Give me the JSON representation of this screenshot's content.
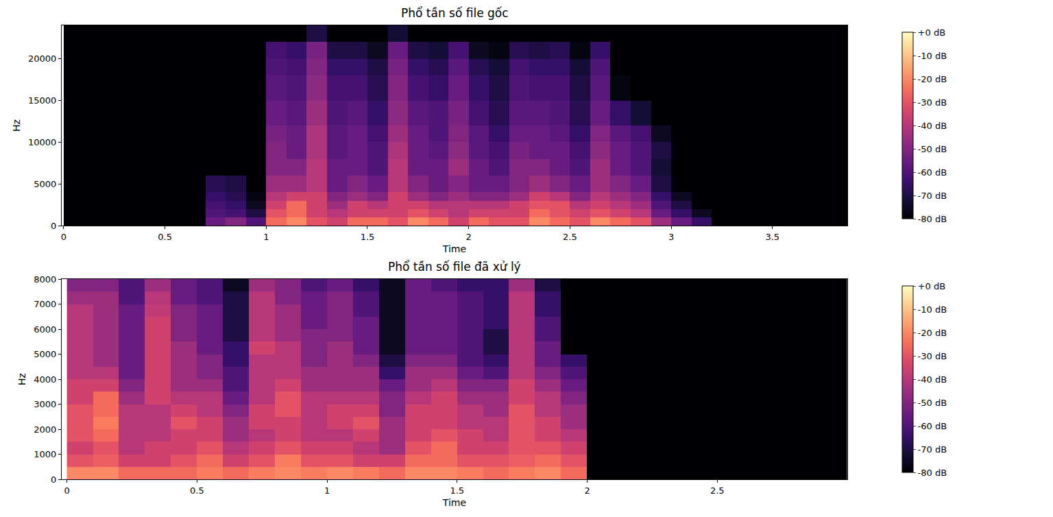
{
  "chart_data": [
    {
      "type": "heatmap",
      "title": "Phổ tần số file gốc",
      "x_label": "Time",
      "y_label": "Hz",
      "color": "magma",
      "x": [
        0,
        0.1,
        0.2,
        0.3,
        0.4,
        0.5,
        0.6,
        0.7,
        0.8,
        0.9,
        1,
        1.1,
        1.2,
        1.3,
        1.4,
        1.5,
        1.6,
        1.7,
        1.8,
        1.9,
        2,
        2.1,
        2.2,
        2.3,
        2.4,
        2.5,
        2.6,
        2.7,
        2.8,
        2.9,
        3,
        3.1,
        3.2,
        3.3,
        3.4,
        3.5,
        3.6,
        3.7,
        3.8,
        3.9
      ],
      "y": [
        0,
        1000,
        2000,
        3000,
        4000,
        6000,
        8000,
        10000,
        12000,
        15000,
        18000,
        20000,
        22000,
        24000
      ],
      "z": [
        [
          -80,
          -80,
          -80,
          -80,
          -80,
          -80,
          -80,
          -55,
          -50,
          -60,
          -25,
          -20,
          -30,
          -35,
          -25,
          -25,
          -30,
          -20,
          -25,
          -35,
          -25,
          -30,
          -30,
          -20,
          -25,
          -30,
          -20,
          -25,
          -30,
          -45,
          -55,
          -65,
          -80,
          -80,
          -80,
          -80,
          -80,
          -80,
          -80
        ],
        [
          -80,
          -80,
          -80,
          -80,
          -80,
          -80,
          -80,
          -60,
          -62,
          -70,
          -30,
          -25,
          -35,
          -40,
          -35,
          -35,
          -35,
          -30,
          -35,
          -40,
          -35,
          -35,
          -35,
          -25,
          -30,
          -35,
          -30,
          -35,
          -40,
          -55,
          -65,
          -75,
          -80,
          -80,
          -80,
          -80,
          -80,
          -80,
          -80
        ],
        [
          -80,
          -80,
          -80,
          -80,
          -80,
          -80,
          -80,
          -62,
          -65,
          -75,
          -35,
          -25,
          -35,
          -45,
          -35,
          -40,
          -35,
          -35,
          -40,
          -40,
          -40,
          -40,
          -35,
          -30,
          -30,
          -40,
          -35,
          -40,
          -45,
          -60,
          -70,
          -80,
          -80,
          -80,
          -80,
          -80,
          -80,
          -80,
          -80
        ],
        [
          -80,
          -80,
          -80,
          -80,
          -80,
          -80,
          -80,
          -65,
          -68,
          -78,
          -40,
          -35,
          -35,
          -50,
          -45,
          -50,
          -35,
          -45,
          -50,
          -45,
          -50,
          -50,
          -45,
          -35,
          -40,
          -50,
          -40,
          -45,
          -50,
          -65,
          -75,
          -80,
          -80,
          -80,
          -80,
          -80,
          -80,
          -80,
          -80
        ],
        [
          -80,
          -80,
          -80,
          -80,
          -80,
          -80,
          -80,
          -68,
          -70,
          -80,
          -45,
          -45,
          -40,
          -55,
          -50,
          -55,
          -40,
          -50,
          -55,
          -50,
          -55,
          -55,
          -50,
          -45,
          -50,
          -55,
          -45,
          -50,
          -55,
          -70,
          -80,
          -80,
          -80,
          -80,
          -80,
          -80,
          -80,
          -80,
          -80
        ],
        [
          -80,
          -80,
          -80,
          -80,
          -80,
          -80,
          -80,
          -80,
          -80,
          -80,
          -50,
          -50,
          -40,
          -55,
          -55,
          -60,
          -40,
          -55,
          -55,
          -45,
          -55,
          -60,
          -50,
          -50,
          -55,
          -60,
          -45,
          -55,
          -60,
          -72,
          -80,
          -80,
          -80,
          -80,
          -80,
          -80,
          -80,
          -80,
          -80
        ],
        [
          -80,
          -80,
          -80,
          -80,
          -80,
          -80,
          -80,
          -80,
          -80,
          -80,
          -50,
          -55,
          -42,
          -58,
          -55,
          -60,
          -42,
          -55,
          -58,
          -48,
          -58,
          -62,
          -52,
          -55,
          -55,
          -62,
          -48,
          -55,
          -60,
          -70,
          -80,
          -80,
          -80,
          -80,
          -80,
          -80,
          -80,
          -80,
          -80
        ],
        [
          -80,
          -80,
          -80,
          -80,
          -80,
          -80,
          -80,
          -80,
          -80,
          -80,
          -52,
          -55,
          -42,
          -58,
          -55,
          -62,
          -45,
          -55,
          -60,
          -50,
          -58,
          -65,
          -55,
          -55,
          -58,
          -65,
          -50,
          -58,
          -62,
          -75,
          -80,
          -80,
          -80,
          -80,
          -80,
          -80,
          -80,
          -80,
          -80
        ],
        [
          -80,
          -80,
          -80,
          -80,
          -80,
          -80,
          -80,
          -80,
          -80,
          -80,
          -55,
          -58,
          -45,
          -60,
          -58,
          -65,
          -48,
          -58,
          -60,
          -52,
          -62,
          -68,
          -58,
          -58,
          -60,
          -68,
          -55,
          -65,
          -72,
          -80,
          -80,
          -80,
          -80,
          -80,
          -80,
          -80,
          -80,
          -80,
          -80
        ],
        [
          -80,
          -80,
          -80,
          -80,
          -80,
          -80,
          -80,
          -80,
          -80,
          -80,
          -58,
          -60,
          -48,
          -62,
          -62,
          -68,
          -50,
          -62,
          -65,
          -55,
          -65,
          -70,
          -60,
          -62,
          -62,
          -70,
          -58,
          -78,
          -80,
          -80,
          -80,
          -80,
          -80,
          -80,
          -80,
          -80,
          -80,
          -80,
          -80
        ],
        [
          -80,
          -80,
          -80,
          -80,
          -80,
          -80,
          -80,
          -80,
          -80,
          -80,
          -60,
          -62,
          -50,
          -65,
          -65,
          -70,
          -52,
          -65,
          -68,
          -58,
          -68,
          -72,
          -62,
          -65,
          -65,
          -72,
          -60,
          -80,
          -80,
          -80,
          -80,
          -80,
          -80,
          -80,
          -80,
          -80,
          -80,
          -80,
          -80
        ],
        [
          -80,
          -80,
          -80,
          -80,
          -80,
          -80,
          -80,
          -80,
          -80,
          -80,
          -62,
          -65,
          -52,
          -70,
          -70,
          -75,
          -55,
          -70,
          -72,
          -62,
          -75,
          -78,
          -68,
          -70,
          -68,
          -78,
          -65,
          -80,
          -80,
          -80,
          -80,
          -80,
          -80,
          -80,
          -80,
          -80,
          -80,
          -80,
          -80
        ],
        [
          -80,
          -80,
          -80,
          -80,
          -80,
          -80,
          -80,
          -80,
          -80,
          -80,
          -80,
          -80,
          -70,
          -80,
          -80,
          -80,
          -72,
          -80,
          -80,
          -80,
          -80,
          -80,
          -80,
          -80,
          -80,
          -80,
          -80,
          -80,
          -80,
          -80,
          -80,
          -80,
          -80,
          -80,
          -80,
          -80,
          -80,
          -80,
          -80
        ]
      ],
      "xlim": [
        -0.01,
        3.87
      ],
      "xticks": [
        0,
        0.5,
        1,
        1.5,
        2,
        2.5,
        3,
        3.5
      ],
      "ylim": [
        0,
        24000
      ],
      "yticks": [
        0,
        5000,
        10000,
        15000,
        20000
      ],
      "zlim": [
        -80,
        0
      ],
      "zticks": [
        {
          "value": 0,
          "label": "+0 dB"
        },
        {
          "value": -10,
          "label": "-10 dB"
        },
        {
          "value": -20,
          "label": "-20 dB"
        },
        {
          "value": -30,
          "label": "-30 dB"
        },
        {
          "value": -40,
          "label": "-40 dB"
        },
        {
          "value": -50,
          "label": "-50 dB"
        },
        {
          "value": -60,
          "label": "-60 dB"
        },
        {
          "value": -70,
          "label": "-70 dB"
        },
        {
          "value": -80,
          "label": "-80 dB"
        }
      ]
    },
    {
      "type": "heatmap",
      "title": "Phổ tần số file đã xử lý",
      "x_label": "Time",
      "y_label": "Hz",
      "color": "magma",
      "x": [
        0,
        0.1,
        0.2,
        0.3,
        0.4,
        0.5,
        0.6,
        0.7,
        0.8,
        0.9,
        1,
        1.1,
        1.2,
        1.3,
        1.4,
        1.5,
        1.6,
        1.7,
        1.8,
        1.9,
        2,
        2.1,
        2.2,
        2.3,
        2.4,
        2.5,
        2.6,
        2.7,
        2.8,
        2.9,
        3
      ],
      "y": [
        0,
        500,
        1000,
        1500,
        2000,
        2500,
        3000,
        3500,
        4000,
        4500,
        5000,
        5500,
        6000,
        6500,
        7000,
        7500,
        8000
      ],
      "z": [
        [
          -20,
          -20,
          -25,
          -25,
          -25,
          -22,
          -25,
          -22,
          -20,
          -22,
          -20,
          -22,
          -25,
          -20,
          -20,
          -22,
          -25,
          -22,
          -20,
          -25,
          -80,
          -80,
          -80,
          -80,
          -80,
          -80,
          -80,
          -80,
          -80,
          -80
        ],
        [
          -30,
          -28,
          -35,
          -35,
          -30,
          -25,
          -35,
          -30,
          -22,
          -30,
          -30,
          -35,
          -35,
          -25,
          -25,
          -30,
          -30,
          -28,
          -25,
          -30,
          -80,
          -80,
          -80,
          -80,
          -80,
          -80,
          -80,
          -80,
          -80,
          -80
        ],
        [
          -35,
          -30,
          -40,
          -35,
          -35,
          -30,
          -40,
          -35,
          -30,
          -35,
          -35,
          -40,
          -45,
          -30,
          -25,
          -35,
          -35,
          -30,
          -30,
          -35,
          -80,
          -80,
          -80,
          -80,
          -80,
          -80,
          -80,
          -80,
          -80,
          -80
        ],
        [
          -30,
          -25,
          -40,
          -40,
          -35,
          -35,
          -45,
          -40,
          -35,
          -40,
          -40,
          -35,
          -45,
          -35,
          -30,
          -35,
          -40,
          -30,
          -35,
          -40,
          -80,
          -80,
          -80,
          -80,
          -80,
          -80,
          -80,
          -80,
          -80,
          -80
        ],
        [
          -30,
          -22,
          -40,
          -40,
          -30,
          -35,
          -45,
          -35,
          -35,
          -40,
          -35,
          -30,
          -45,
          -35,
          -35,
          -40,
          -40,
          -30,
          -35,
          -45,
          -80,
          -80,
          -80,
          -80,
          -80,
          -80,
          -80,
          -80,
          -80,
          -80
        ],
        [
          -30,
          -25,
          -40,
          -40,
          -35,
          -40,
          -50,
          -35,
          -30,
          -40,
          -35,
          -35,
          -50,
          -35,
          -35,
          -40,
          -45,
          -30,
          -40,
          -45,
          -80,
          -80,
          -80,
          -80,
          -80,
          -80,
          -80,
          -80,
          -80,
          -80
        ],
        [
          -35,
          -25,
          -45,
          -35,
          -40,
          -40,
          -55,
          -40,
          -30,
          -40,
          -40,
          -40,
          -50,
          -40,
          -35,
          -45,
          -45,
          -35,
          -40,
          -50,
          -80,
          -80,
          -80,
          -80,
          -80,
          -80,
          -80,
          -80,
          -80,
          -80
        ],
        [
          -35,
          -35,
          -50,
          -35,
          -45,
          -45,
          -60,
          -40,
          -35,
          -45,
          -45,
          -45,
          -55,
          -45,
          -40,
          -50,
          -50,
          -35,
          -45,
          -55,
          -80,
          -80,
          -80,
          -80,
          -80,
          -80,
          -80,
          -80,
          -80,
          -80
        ],
        [
          -40,
          -40,
          -55,
          -35,
          -45,
          -50,
          -60,
          -40,
          -40,
          -45,
          -45,
          -45,
          -65,
          -45,
          -45,
          -55,
          -60,
          -40,
          -50,
          -60,
          -80,
          -80,
          -80,
          -80,
          -80,
          -80,
          -80,
          -80,
          -80,
          -80
        ],
        [
          -40,
          -45,
          -55,
          -35,
          -45,
          -50,
          -65,
          -40,
          -40,
          -50,
          -45,
          -50,
          -70,
          -50,
          -50,
          -60,
          -65,
          -40,
          -55,
          -65,
          -80,
          -80,
          -80,
          -80,
          -80,
          -80,
          -80,
          -80,
          -80,
          -80
        ],
        [
          -40,
          -45,
          -55,
          -35,
          -45,
          -55,
          -65,
          -35,
          -40,
          -50,
          -45,
          -55,
          -75,
          -55,
          -55,
          -60,
          -70,
          -40,
          -55,
          -80,
          -80,
          -80,
          -80,
          -80,
          -80,
          -80,
          -80,
          -80,
          -80,
          -80
        ],
        [
          -40,
          -45,
          -55,
          -35,
          -50,
          -55,
          -70,
          -40,
          -45,
          -50,
          -50,
          -55,
          -75,
          -55,
          -55,
          -60,
          -70,
          -40,
          -60,
          -80,
          -80,
          -80,
          -80,
          -80,
          -80,
          -80,
          -80,
          -80,
          -80,
          -80
        ],
        [
          -40,
          -45,
          -55,
          -35,
          -50,
          -55,
          -70,
          -40,
          -45,
          -55,
          -50,
          -55,
          -75,
          -55,
          -55,
          -60,
          -65,
          -40,
          -60,
          -80,
          -80,
          -80,
          -80,
          -80,
          -80,
          -80,
          -80,
          -80,
          -80,
          -80
        ],
        [
          -40,
          -45,
          -55,
          -38,
          -50,
          -55,
          -70,
          -40,
          -45,
          -55,
          -50,
          -60,
          -75,
          -55,
          -55,
          -60,
          -65,
          -40,
          -65,
          -80,
          -80,
          -80,
          -80,
          -80,
          -80,
          -80,
          -80,
          -80,
          -80,
          -80
        ],
        [
          -45,
          -45,
          -60,
          -40,
          -55,
          -60,
          -70,
          -40,
          -50,
          -55,
          -50,
          -60,
          -75,
          -55,
          -55,
          -60,
          -65,
          -40,
          -65,
          -80,
          -80,
          -80,
          -80,
          -80,
          -80,
          -80,
          -80,
          -80,
          -80,
          -80
        ],
        [
          -50,
          -50,
          -60,
          -45,
          -55,
          -60,
          -75,
          -45,
          -50,
          -60,
          -55,
          -65,
          -75,
          -55,
          -60,
          -65,
          -65,
          -45,
          -70,
          -80,
          -80,
          -80,
          -80,
          -80,
          -80,
          -80,
          -80,
          -80,
          -80,
          -80
        ]
      ],
      "xlim": [
        -0.02,
        3.0
      ],
      "xticks": [
        0,
        0.5,
        1,
        1.5,
        2,
        2.5
      ],
      "ylim": [
        0,
        8000
      ],
      "yticks": [
        0,
        1000,
        2000,
        3000,
        4000,
        5000,
        6000,
        7000,
        8000
      ],
      "zlim": [
        -80,
        0
      ],
      "zticks": [
        {
          "value": 0,
          "label": "+0 dB"
        },
        {
          "value": -10,
          "label": "-10 dB"
        },
        {
          "value": -20,
          "label": "-20 dB"
        },
        {
          "value": -30,
          "label": "-30 dB"
        },
        {
          "value": -40,
          "label": "-40 dB"
        },
        {
          "value": -50,
          "label": "-50 dB"
        },
        {
          "value": -60,
          "label": "-60 dB"
        },
        {
          "value": -70,
          "label": "-70 dB"
        },
        {
          "value": -80,
          "label": "-80 dB"
        }
      ]
    }
  ]
}
